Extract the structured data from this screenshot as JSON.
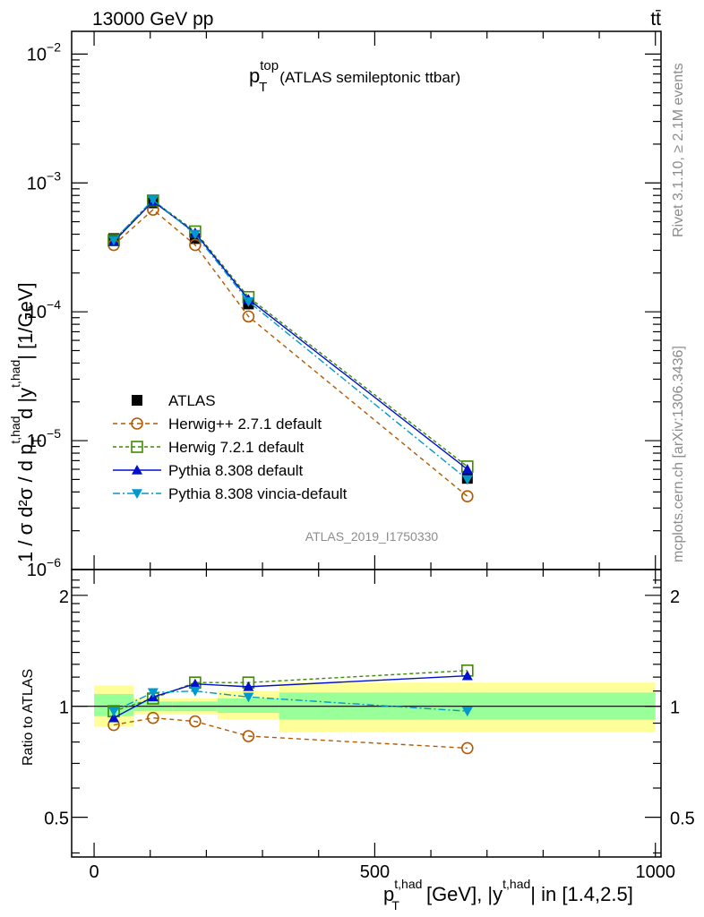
{
  "header": {
    "energy_label": "13000 GeV pp",
    "process_label": "tt̄",
    "side_label_rivet": "Rivet 3.1.10, ≥ 2.1M events",
    "side_label_site": "mcplots.cern.ch [arXiv:1306.3436]",
    "analysis_id": "ATLAS_2019_I1750330"
  },
  "chart_data": {
    "type": "line",
    "title_main": "p",
    "title_sup": "top",
    "title_sub": "T",
    "title_tail": "(ATLAS semileptonic ttbar)",
    "ylabel_main": "1 / σ d²σ / d p",
    "ylabel_tail": "d |y",
    "ylabel_unit": "| [1/GeV]",
    "ylabel_sup": "t,had",
    "ylabel_sub": "T",
    "ratio_ylabel": "Ratio to ATLAS",
    "xlabel_main": "p",
    "xlabel_sup": "t,had",
    "xlabel_sub": "T",
    "xlabel_mid": "[GeV], |y",
    "xlabel_tail": "| in [1.4,2.5]",
    "xlim": [
      -40,
      1010
    ],
    "ylim": [
      1e-06,
      0.015
    ],
    "ratio_ylim": [
      0.39,
      2.35
    ],
    "x_ticks": [
      0,
      500,
      1000
    ],
    "x_tick_labels": [
      "0",
      "500",
      "1000"
    ],
    "y_ticks": [
      1e-06,
      1e-05,
      0.0001,
      0.001,
      0.01
    ],
    "y_tick_labels": [
      {
        "base": "10",
        "exp": "−6"
      },
      {
        "base": "10",
        "exp": "−5"
      },
      {
        "base": "10",
        "exp": "−4"
      },
      {
        "base": "10",
        "exp": "−3"
      },
      {
        "base": "10",
        "exp": "−2"
      }
    ],
    "ratio_ticks": [
      0.5,
      1,
      2
    ],
    "ratio_tick_labels": [
      "0.5",
      "1",
      "2"
    ],
    "bin_edges": [
      0,
      70,
      140,
      220,
      330,
      1000
    ],
    "x": [
      35,
      105,
      180,
      275,
      665
    ],
    "band_yellow": [
      [
        0.88,
        1.14
      ],
      [
        0.95,
        1.05
      ],
      [
        0.95,
        1.05
      ],
      [
        0.92,
        1.1
      ],
      [
        0.85,
        1.16
      ]
    ],
    "band_green": [
      [
        0.94,
        1.08
      ],
      [
        0.97,
        1.03
      ],
      [
        0.97,
        1.03
      ],
      [
        0.96,
        1.05
      ],
      [
        0.92,
        1.09
      ]
    ],
    "series": [
      {
        "name": "ATLAS",
        "color": "#000000",
        "marker": "square-filled",
        "dash": "none",
        "values": [
          0.00037,
          0.0007,
          0.00037,
          0.000115,
          5.1e-06
        ],
        "ratio": [
          1,
          1,
          1,
          1,
          1
        ]
      },
      {
        "name": "Herwig++ 2.7.1 default",
        "color": "#b35900",
        "marker": "circle-open",
        "dash": "5,4",
        "values": [
          0.00033,
          0.00062,
          0.00033,
          9.2e-05,
          3.7e-06
        ],
        "ratio": [
          0.89,
          0.93,
          0.91,
          0.83,
          0.77
        ]
      },
      {
        "name": "Herwig 7.2.1 default",
        "color": "#3e8a00",
        "marker": "square-open",
        "dash": "4,3",
        "values": [
          0.00036,
          0.00073,
          0.00042,
          0.00013,
          6.3e-06
        ],
        "ratio": [
          0.97,
          1.05,
          1.16,
          1.16,
          1.25
        ]
      },
      {
        "name": "Pythia 8.308 default",
        "color": "#0010cc",
        "marker": "triangle-up",
        "dash": "none",
        "values": [
          0.00035,
          0.00072,
          0.00041,
          0.000125,
          6e-06
        ],
        "ratio": [
          0.93,
          1.06,
          1.15,
          1.13,
          1.21
        ]
      },
      {
        "name": "Pythia 8.308 vincia-default",
        "color": "#0099cc",
        "marker": "triangle-down",
        "dash": "8,3,2,3",
        "values": [
          0.00036,
          0.00074,
          0.0004,
          0.00012,
          5e-06
        ],
        "ratio": [
          0.97,
          1.09,
          1.1,
          1.06,
          0.97
        ]
      }
    ]
  }
}
